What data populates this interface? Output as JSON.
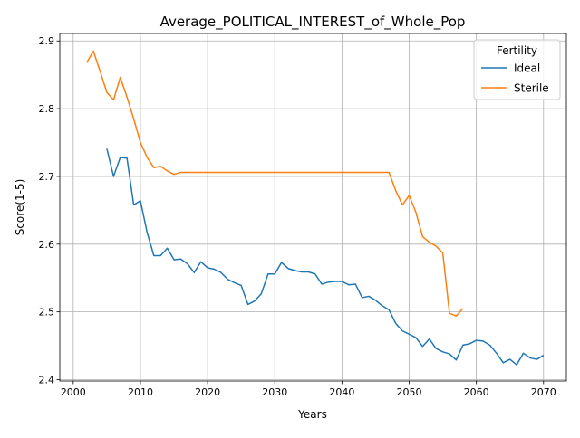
{
  "chart_data": {
    "type": "line",
    "title": "Average_POLITICAL_INTEREST_of_Whole_Pop",
    "xlabel": "Years",
    "ylabel": "Score(1-5)",
    "xlim": [
      1998,
      2073.4
    ],
    "ylim": [
      2.398,
      2.911
    ],
    "xticks": [
      2000,
      2010,
      2020,
      2030,
      2040,
      2050,
      2060,
      2070
    ],
    "yticks": [
      2.4,
      2.5,
      2.6,
      2.7,
      2.8,
      2.9
    ],
    "xtick_labels": [
      "2000",
      "2010",
      "2020",
      "2030",
      "2040",
      "2050",
      "2060",
      "2070"
    ],
    "ytick_labels": [
      "2.4",
      "2.5",
      "2.6",
      "2.7",
      "2.8",
      "2.9"
    ],
    "grid": true,
    "legend": {
      "title": "Fertility",
      "position": "top-right"
    },
    "series": [
      {
        "name": "Ideal",
        "color": "#1f77b4",
        "x": [
          2005,
          2006,
          2007,
          2008,
          2009,
          2010,
          2011,
          2012,
          2013,
          2014,
          2015,
          2016,
          2017,
          2018,
          2019,
          2020,
          2021,
          2022,
          2023,
          2024,
          2025,
          2026,
          2027,
          2028,
          2029,
          2030,
          2031,
          2032,
          2033,
          2034,
          2035,
          2036,
          2037,
          2038,
          2039,
          2040,
          2041,
          2042,
          2043,
          2044,
          2045,
          2046,
          2047,
          2048,
          2049,
          2050,
          2051,
          2052,
          2053,
          2054,
          2055,
          2056,
          2057,
          2058,
          2059,
          2060,
          2061,
          2062,
          2063,
          2064,
          2065,
          2066,
          2067,
          2068,
          2069,
          2070
        ],
        "y": [
          2.741,
          2.7,
          2.728,
          2.727,
          2.658,
          2.664,
          2.617,
          2.583,
          2.583,
          2.594,
          2.577,
          2.578,
          2.571,
          2.558,
          2.574,
          2.565,
          2.563,
          2.558,
          2.548,
          2.543,
          2.539,
          2.511,
          2.516,
          2.527,
          2.556,
          2.556,
          2.573,
          2.564,
          2.561,
          2.559,
          2.559,
          2.556,
          2.541,
          2.544,
          2.545,
          2.545,
          2.54,
          2.541,
          2.521,
          2.523,
          2.517,
          2.509,
          2.503,
          2.483,
          2.472,
          2.467,
          2.462,
          2.449,
          2.46,
          2.446,
          2.441,
          2.438,
          2.429,
          2.451,
          2.453,
          2.458,
          2.457,
          2.451,
          2.439,
          2.425,
          2.43,
          2.422,
          2.439,
          2.432,
          2.43,
          2.436
        ]
      },
      {
        "name": "Sterile",
        "color": "#ff7f0e",
        "x": [
          2002,
          2003,
          2004,
          2005,
          2006,
          2007,
          2008,
          2009,
          2010,
          2011,
          2012,
          2013,
          2014,
          2015,
          2016,
          2017,
          2018,
          2019,
          2020,
          2021,
          2022,
          2023,
          2024,
          2025,
          2026,
          2027,
          2028,
          2029,
          2030,
          2031,
          2032,
          2033,
          2034,
          2035,
          2036,
          2037,
          2038,
          2039,
          2040,
          2041,
          2042,
          2043,
          2044,
          2045,
          2046,
          2047,
          2048,
          2049,
          2050,
          2051,
          2052,
          2053,
          2054,
          2055,
          2056,
          2057,
          2058
        ],
        "y": [
          2.868,
          2.885,
          2.855,
          2.824,
          2.813,
          2.846,
          2.817,
          2.785,
          2.75,
          2.728,
          2.713,
          2.715,
          2.708,
          2.703,
          2.706,
          2.706,
          2.706,
          2.706,
          2.706,
          2.706,
          2.706,
          2.706,
          2.706,
          2.706,
          2.706,
          2.706,
          2.706,
          2.706,
          2.706,
          2.706,
          2.706,
          2.706,
          2.706,
          2.706,
          2.706,
          2.706,
          2.706,
          2.706,
          2.706,
          2.706,
          2.706,
          2.706,
          2.706,
          2.706,
          2.706,
          2.706,
          2.679,
          2.658,
          2.672,
          2.647,
          2.611,
          2.603,
          2.597,
          2.587,
          2.498,
          2.494,
          2.505
        ]
      }
    ]
  }
}
